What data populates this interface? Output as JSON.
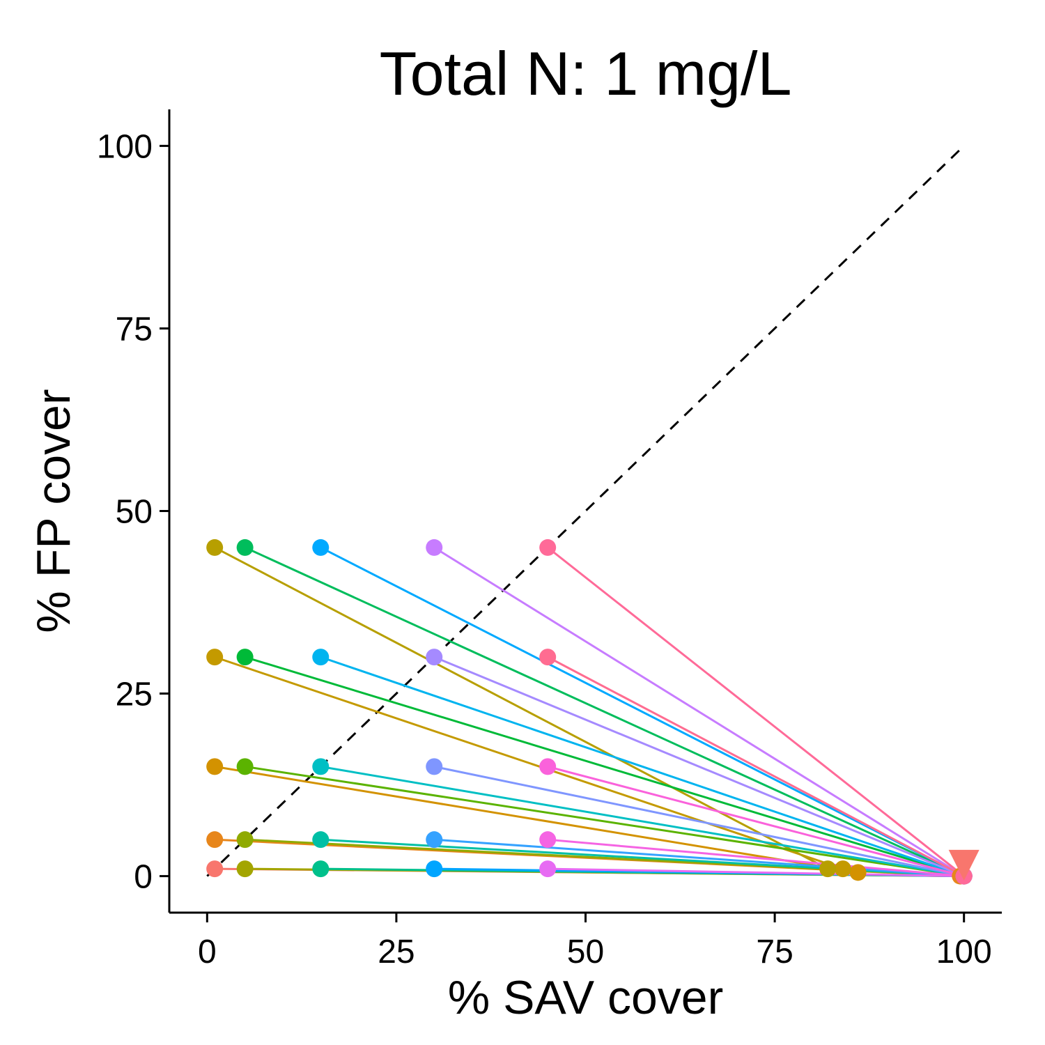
{
  "chart_data": {
    "type": "line",
    "title": "Total N: 1 mg/L",
    "xlabel": "% SAV cover",
    "ylabel": "% FP cover",
    "xlim": [
      -5,
      105
    ],
    "ylim": [
      -5,
      105
    ],
    "xticks": [
      0,
      25,
      50,
      75,
      100
    ],
    "yticks": [
      0,
      25,
      50,
      75,
      100
    ],
    "grid": false,
    "reference_line": {
      "style": "dashed",
      "color": "#000000",
      "from": [
        0,
        0
      ],
      "to": [
        100,
        100
      ]
    },
    "end_marker": {
      "shape": "triangle-down",
      "x": 100,
      "y": 1.5,
      "color": "#F8766D"
    },
    "series": [
      {
        "color": "#F8766D",
        "start": [
          1,
          1
        ],
        "end": [
          100,
          0
        ]
      },
      {
        "color": "#E7861B",
        "start": [
          1,
          5
        ],
        "end": [
          99.5,
          0
        ]
      },
      {
        "color": "#D39200",
        "start": [
          1,
          15
        ],
        "end": [
          86,
          0.5
        ]
      },
      {
        "color": "#C49A00",
        "start": [
          1,
          30
        ],
        "end": [
          84,
          1
        ]
      },
      {
        "color": "#B79F00",
        "start": [
          1,
          45
        ],
        "end": [
          82,
          1
        ]
      },
      {
        "color": "#A3A500",
        "start": [
          5,
          1
        ],
        "end": [
          100,
          0
        ]
      },
      {
        "color": "#8FAA00",
        "start": [
          5,
          5
        ],
        "end": [
          100,
          0
        ]
      },
      {
        "color": "#5BB300",
        "start": [
          5,
          15
        ],
        "end": [
          100,
          0
        ]
      },
      {
        "color": "#00BA38",
        "start": [
          5,
          30
        ],
        "end": [
          100,
          0
        ]
      },
      {
        "color": "#00BD5C",
        "start": [
          5,
          45
        ],
        "end": [
          100,
          0
        ]
      },
      {
        "color": "#00C08B",
        "start": [
          15,
          1
        ],
        "end": [
          100,
          0
        ]
      },
      {
        "color": "#00BFA5",
        "start": [
          15,
          5
        ],
        "end": [
          100,
          0
        ]
      },
      {
        "color": "#00BFC4",
        "start": [
          15,
          15
        ],
        "end": [
          100,
          0
        ]
      },
      {
        "color": "#00B4EF",
        "start": [
          15,
          30
        ],
        "end": [
          100,
          0
        ]
      },
      {
        "color": "#00A9FF",
        "start": [
          15,
          45
        ],
        "end": [
          100,
          0
        ]
      },
      {
        "color": "#00A5FF",
        "start": [
          30,
          1
        ],
        "end": [
          100,
          0
        ]
      },
      {
        "color": "#35A2FF",
        "start": [
          30,
          5
        ],
        "end": [
          100,
          0
        ]
      },
      {
        "color": "#7F96FF",
        "start": [
          30,
          15
        ],
        "end": [
          100,
          0
        ]
      },
      {
        "color": "#A58AFF",
        "start": [
          30,
          30
        ],
        "end": [
          100,
          0
        ]
      },
      {
        "color": "#C77CFF",
        "start": [
          30,
          45
        ],
        "end": [
          100,
          0
        ]
      },
      {
        "color": "#E76BF3",
        "start": [
          45,
          1
        ],
        "end": [
          100,
          0
        ]
      },
      {
        "color": "#F564E3",
        "start": [
          45,
          5
        ],
        "end": [
          100,
          0
        ]
      },
      {
        "color": "#FA62DB",
        "start": [
          45,
          15
        ],
        "end": [
          100,
          0
        ]
      },
      {
        "color": "#FF6C91",
        "start": [
          45,
          30
        ],
        "end": [
          100,
          0
        ]
      },
      {
        "color": "#FF6A98",
        "start": [
          45,
          45
        ],
        "end": [
          100,
          0
        ]
      }
    ]
  }
}
